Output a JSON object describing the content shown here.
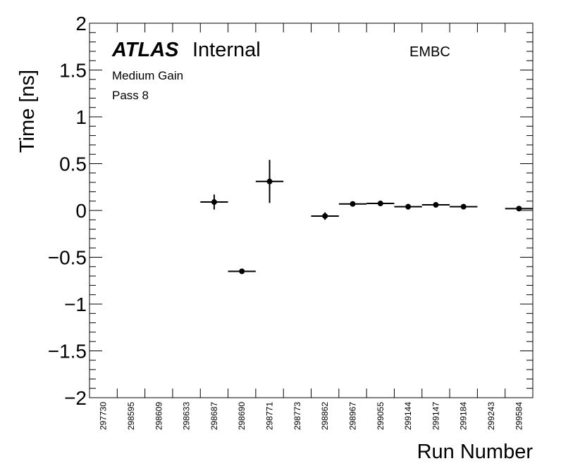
{
  "chart_data": {
    "type": "scatter",
    "xlabel": "Run Number",
    "ylabel": "Time [ns]",
    "ylim": [
      -2,
      2
    ],
    "yticks": [
      "2",
      "1.5",
      "1",
      "0.5",
      "0",
      "−0.5",
      "−1",
      "−1.5",
      "−2"
    ],
    "ytick_values": [
      2,
      1.5,
      1,
      0.5,
      0,
      -0.5,
      -1,
      -1.5,
      -2
    ],
    "categories": [
      "297730",
      "298595",
      "298609",
      "298633",
      "298687",
      "298690",
      "298771",
      "298773",
      "298862",
      "298967",
      "299055",
      "299144",
      "299147",
      "299184",
      "299243",
      "299584"
    ],
    "values": [
      null,
      null,
      null,
      null,
      0.09,
      -0.65,
      0.31,
      null,
      -0.06,
      0.07,
      0.075,
      0.04,
      0.06,
      0.04,
      null,
      0.02
    ],
    "errors": [
      null,
      null,
      null,
      null,
      0.08,
      0.01,
      0.23,
      null,
      0.04,
      0.01,
      0.01,
      0.03,
      0.02,
      0.01,
      null,
      0.01
    ],
    "grid": false,
    "annotations": {
      "experiment": "ATLAS",
      "status": "Internal",
      "line1": "Medium Gain",
      "line2": "Pass 8",
      "region": "EMBC"
    }
  }
}
